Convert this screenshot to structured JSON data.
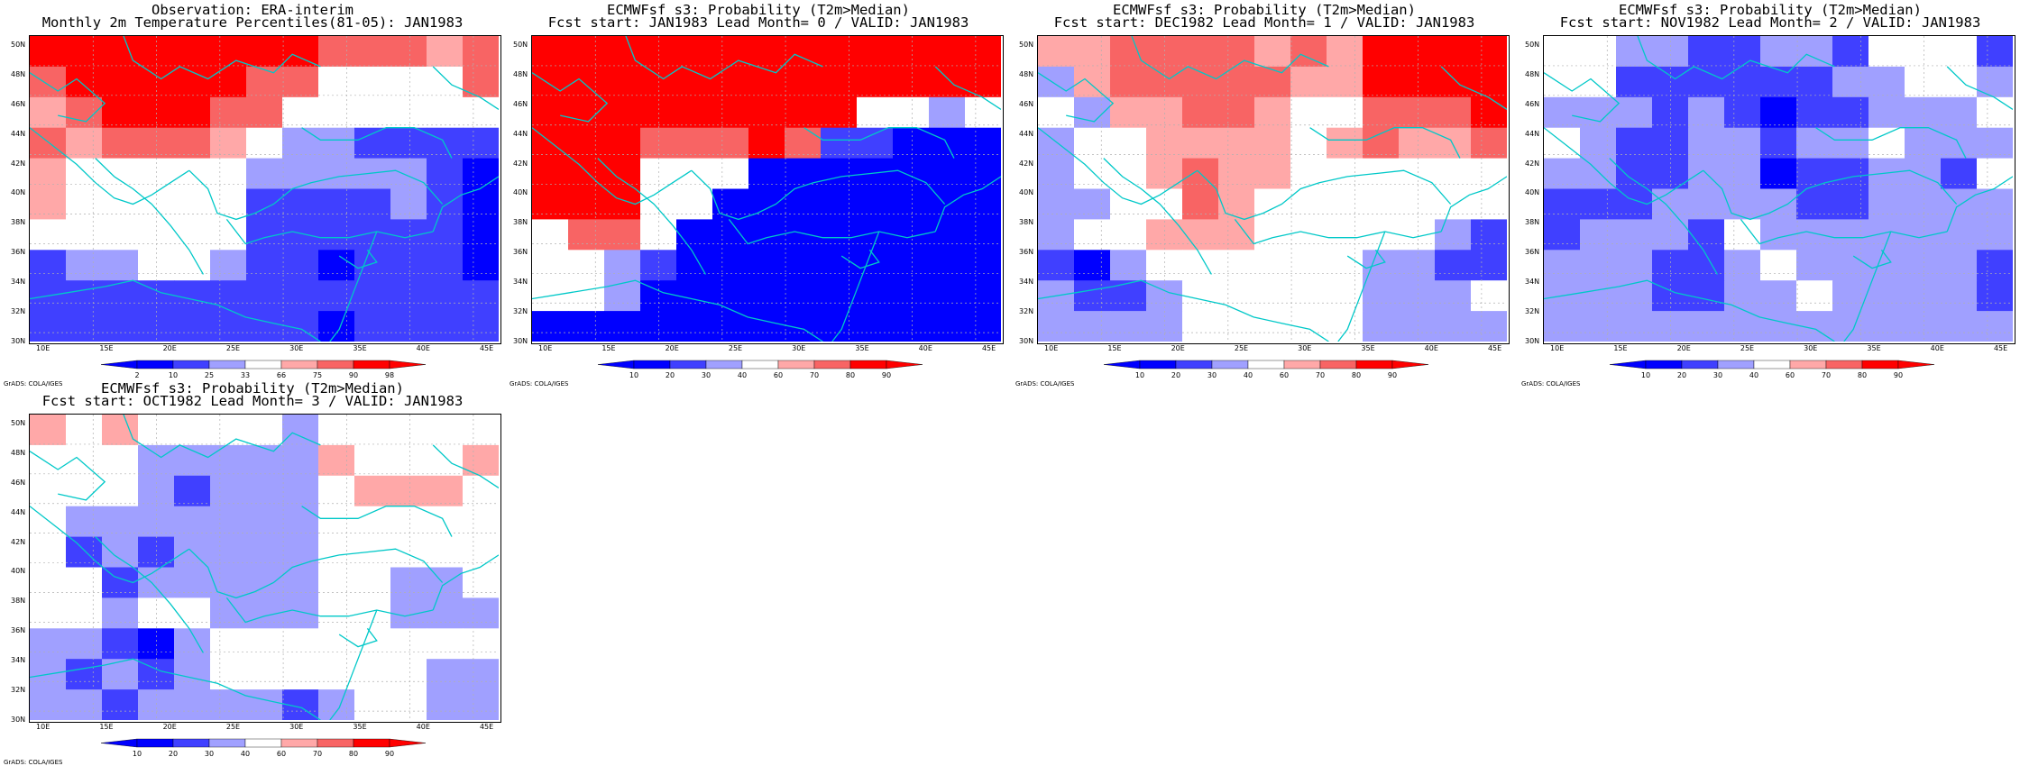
{
  "colors": {
    "neg3": "#0000ff",
    "neg2": "#4040ff",
    "neg1": "#a0a0ff",
    "neutral": "#ffffff",
    "pos1": "#ffa8a8",
    "pos2": "#f86464",
    "pos3": "#ff0000",
    "coast": "#00c8c8"
  },
  "credit": "GrADS: COLA/IGES",
  "lat_labels": [
    "30N",
    "32N",
    "34N",
    "36N",
    "38N",
    "40N",
    "42N",
    "44N",
    "46N",
    "48N",
    "50N"
  ],
  "lon_labels": [
    "10E",
    "15E",
    "20E",
    "25E",
    "30E",
    "35E",
    "40E",
    "45E"
  ],
  "panels": [
    {
      "title1": "Observation: ERA-interim",
      "title2": "Monthly 2m Temperature Percentiles(81-05): JAN1983",
      "cbar_labels": [
        "2",
        "10",
        "25",
        "33",
        "66",
        "75",
        "90",
        "98"
      ],
      "grid": [
        "3333333322222",
        "2333332222000",
        "1232222100000",
        "2122211000000",
        "1100000000000",
        "1000000111223",
        "0000000222223",
        "0000001233333",
        "1100002222222",
        "2200000022222",
        "2222222222222",
        "1222222222222"
      ]
    },
    {
      "title1": "ECMWFsf s3: Probability (T2m>Median)",
      "title2": "Fcst start: JAN1983  Lead Month= 0 / VALID: JAN1983",
      "cbar_labels": [
        "10",
        "20",
        "30",
        "40",
        "60",
        "70",
        "80",
        "90"
      ],
      "grid": [
        "3333333333333",
        "3333333333333",
        "3333333333333",
        "3333333333333",
        "3333333333333",
        "3333333333333",
        "3333333333333",
        "3333333333333",
        "3333333333333",
        "3333333333333",
        "3333333333333",
        "3333333333333"
      ],
      "override": [
        "3333333333333",
        "3333333333333",
        "3333333331000",
        "3333333311111",
        "3333333333330",
        "3332221111133",
        "3333333333333",
        "3333000000000",
        "0100000000000",
        "0000000000000",
        "0000000000000",
        "0000000000000"
      ],
      "signs": [
        "3333333333333",
        "3333333333333",
        "3333333330000",
        "3333333300000",
        "3333333333330",
        "3332220000033",
        "3333333333333",
        "3333000000000",
        "0100000000000",
        "0000000000000",
        "0000000000000",
        "0000000000000"
      ]
    },
    {
      "title1": "ECMWFsf s3: Probability (T2m>Median)",
      "title2": "Fcst start: DEC1982  Lead Month= 1 / VALID: JAN1983",
      "cbar_labels": [
        "10",
        "20",
        "30",
        "40",
        "60",
        "70",
        "80",
        "90"
      ]
    },
    {
      "title1": "ECMWFsf s3: Probability (T2m>Median)",
      "title2": "Fcst start: NOV1982  Lead Month= 2 / VALID: JAN1983",
      "cbar_labels": [
        "10",
        "20",
        "30",
        "40",
        "60",
        "70",
        "80",
        "90"
      ]
    },
    {
      "title1": "ECMWFsf s3: Probability (T2m>Median)",
      "title2": "Fcst start: OCT1982  Lead Month= 3 / VALID: JAN1983",
      "cbar_labels": [
        "10",
        "20",
        "30",
        "40",
        "60",
        "70",
        "80",
        "90"
      ]
    }
  ]
}
